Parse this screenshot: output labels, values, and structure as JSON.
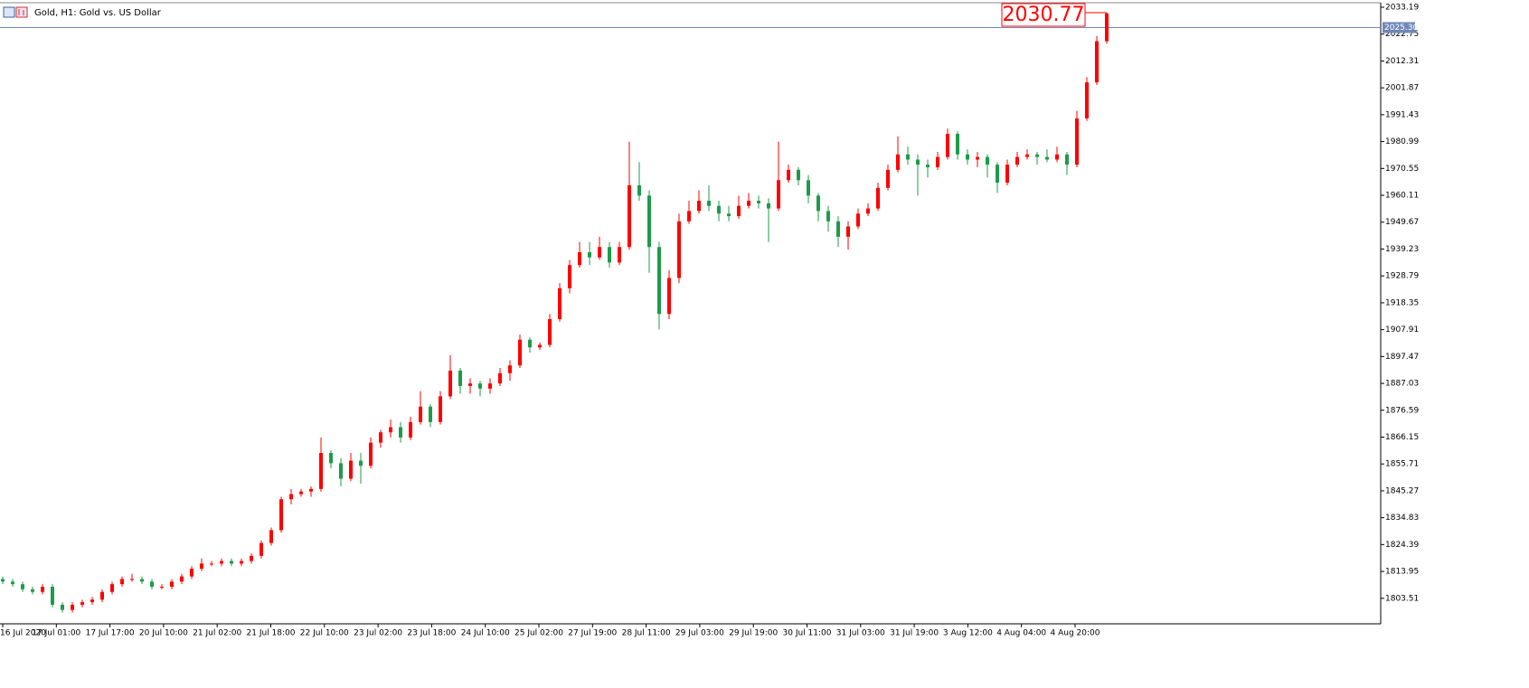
{
  "chart_data": {
    "type": "candlestick",
    "title": "Gold, H1:  Gold vs. US Dollar",
    "up_color": "#ff0000",
    "down_color": "#1e9b4a",
    "ylim": [
      1793.6,
      2035.3
    ],
    "yticks": [
      2033.19,
      2022.75,
      2012.31,
      2001.87,
      1991.43,
      1980.99,
      1970.55,
      1960.11,
      1949.67,
      1939.23,
      1928.79,
      1918.35,
      1907.91,
      1897.47,
      1887.03,
      1876.59,
      1866.15,
      1855.71,
      1845.27,
      1834.83,
      1824.39,
      1813.95,
      1803.51
    ],
    "categories": [
      "16 Jul 2020",
      "17 Jul 01:00",
      "17 Jul 17:00",
      "20 Jul 10:00",
      "21 Jul 02:00",
      "21 Jul 18:00",
      "22 Jul 10:00",
      "23 Jul 02:00",
      "23 Jul 18:00",
      "24 Jul 10:00",
      "25 Jul 02:00",
      "27 Jul 19:00",
      "28 Jul 11:00",
      "29 Jul 03:00",
      "29 Jul 19:00",
      "30 Jul 11:00",
      "31 Jul 03:00",
      "31 Jul 19:00",
      "3 Aug 12:00",
      "4 Aug 04:00",
      "4 Aug 20:00"
    ],
    "current_price": {
      "value": 2025.3,
      "label": "2025.30"
    },
    "last_price": 2030.77,
    "candles": [
      [
        1811,
        1812,
        1809,
        1810
      ],
      [
        1810,
        1811,
        1808,
        1809
      ],
      [
        1809,
        1810,
        1806,
        1807
      ],
      [
        1807,
        1808,
        1805,
        1806
      ],
      [
        1806,
        1809,
        1805,
        1808
      ],
      [
        1808,
        1809,
        1800,
        1801
      ],
      [
        1801,
        1802,
        1798,
        1799
      ],
      [
        1799,
        1802,
        1798,
        1801
      ],
      [
        1801,
        1803,
        1800,
        1802
      ],
      [
        1802,
        1804,
        1801,
        1803
      ],
      [
        1803,
        1807,
        1802,
        1806
      ],
      [
        1806,
        1810,
        1805,
        1809
      ],
      [
        1809,
        1812,
        1808,
        1811
      ],
      [
        1811,
        1813,
        1810,
        1811
      ],
      [
        1811,
        1812,
        1809,
        1810
      ],
      [
        1810,
        1811,
        1807,
        1808
      ],
      [
        1808,
        1809,
        1807,
        1808
      ],
      [
        1808,
        1811,
        1807,
        1810
      ],
      [
        1810,
        1813,
        1809,
        1812
      ],
      [
        1812,
        1816,
        1811,
        1815
      ],
      [
        1815,
        1819,
        1814,
        1817
      ],
      [
        1817,
        1818,
        1816,
        1817
      ],
      [
        1817,
        1819,
        1816,
        1818
      ],
      [
        1818,
        1819,
        1816,
        1817
      ],
      [
        1817,
        1819,
        1816,
        1818
      ],
      [
        1818,
        1821,
        1817,
        1820
      ],
      [
        1820,
        1826,
        1819,
        1825
      ],
      [
        1825,
        1831,
        1824,
        1830
      ],
      [
        1830,
        1843,
        1829,
        1842
      ],
      [
        1842,
        1846,
        1840,
        1844
      ],
      [
        1844,
        1846,
        1843,
        1845
      ],
      [
        1845,
        1847,
        1843,
        1846
      ],
      [
        1846,
        1866,
        1845,
        1860
      ],
      [
        1860,
        1861,
        1854,
        1856
      ],
      [
        1856,
        1858,
        1847,
        1850
      ],
      [
        1850,
        1860,
        1849,
        1857
      ],
      [
        1857,
        1860,
        1848,
        1855
      ],
      [
        1855,
        1866,
        1854,
        1864
      ],
      [
        1864,
        1869,
        1862,
        1868
      ],
      [
        1868,
        1873,
        1866,
        1870
      ],
      [
        1870,
        1872,
        1864,
        1866
      ],
      [
        1866,
        1874,
        1865,
        1872
      ],
      [
        1872,
        1884,
        1871,
        1878
      ],
      [
        1878,
        1879,
        1870,
        1872
      ],
      [
        1872,
        1884,
        1871,
        1882
      ],
      [
        1882,
        1898,
        1881,
        1892
      ],
      [
        1892,
        1893,
        1883,
        1886
      ],
      [
        1886,
        1889,
        1883,
        1887
      ],
      [
        1887,
        1888,
        1882,
        1885
      ],
      [
        1885,
        1889,
        1883,
        1887
      ],
      [
        1887,
        1893,
        1886,
        1891
      ],
      [
        1891,
        1896,
        1888,
        1894
      ],
      [
        1894,
        1906,
        1893,
        1904
      ],
      [
        1904,
        1905,
        1899,
        1901
      ],
      [
        1901,
        1903,
        1900,
        1902
      ],
      [
        1902,
        1914,
        1901,
        1912
      ],
      [
        1912,
        1926,
        1911,
        1924
      ],
      [
        1924,
        1935,
        1922,
        1933
      ],
      [
        1933,
        1942,
        1932,
        1938
      ],
      [
        1938,
        1942,
        1933,
        1936
      ],
      [
        1936,
        1944,
        1935,
        1940
      ],
      [
        1940,
        1942,
        1932,
        1934
      ],
      [
        1934,
        1942,
        1933,
        1940
      ],
      [
        1940,
        1981,
        1939,
        1964
      ],
      [
        1964,
        1973,
        1958,
        1960
      ],
      [
        1960,
        1962,
        1930,
        1940
      ],
      [
        1940,
        1942,
        1908,
        1914
      ],
      [
        1914,
        1931,
        1912,
        1928
      ],
      [
        1928,
        1953,
        1926,
        1950
      ],
      [
        1950,
        1958,
        1949,
        1954
      ],
      [
        1954,
        1962,
        1953,
        1958
      ],
      [
        1958,
        1964,
        1954,
        1956
      ],
      [
        1956,
        1958,
        1950,
        1953
      ],
      [
        1953,
        1956,
        1950,
        1952
      ],
      [
        1952,
        1960,
        1951,
        1956
      ],
      [
        1956,
        1961,
        1955,
        1958
      ],
      [
        1958,
        1960,
        1955,
        1957
      ],
      [
        1957,
        1959,
        1942,
        1955
      ],
      [
        1955,
        1981,
        1954,
        1966
      ],
      [
        1966,
        1972,
        1965,
        1970
      ],
      [
        1970,
        1971,
        1964,
        1966
      ],
      [
        1966,
        1968,
        1957,
        1960
      ],
      [
        1960,
        1961,
        1950,
        1954
      ],
      [
        1954,
        1956,
        1946,
        1950
      ],
      [
        1950,
        1952,
        1940,
        1944
      ],
      [
        1944,
        1950,
        1939,
        1948
      ],
      [
        1948,
        1955,
        1947,
        1953
      ],
      [
        1953,
        1957,
        1952,
        1955
      ],
      [
        1955,
        1965,
        1954,
        1963
      ],
      [
        1963,
        1972,
        1962,
        1970
      ],
      [
        1970,
        1983,
        1969,
        1976
      ],
      [
        1976,
        1979,
        1972,
        1974
      ],
      [
        1974,
        1976,
        1960,
        1972
      ],
      [
        1972,
        1974,
        1967,
        1971
      ],
      [
        1971,
        1977,
        1970,
        1975
      ],
      [
        1975,
        1986,
        1974,
        1984
      ],
      [
        1984,
        1985,
        1974,
        1976
      ],
      [
        1976,
        1978,
        1972,
        1974
      ],
      [
        1974,
        1977,
        1971,
        1975
      ],
      [
        1975,
        1976,
        1967,
        1972
      ],
      [
        1972,
        1973,
        1961,
        1965
      ],
      [
        1965,
        1974,
        1964,
        1972
      ],
      [
        1972,
        1977,
        1971,
        1975
      ],
      [
        1975,
        1978,
        1974,
        1976
      ],
      [
        1976,
        1977,
        1972,
        1975
      ],
      [
        1975,
        1978,
        1973,
        1974
      ],
      [
        1974,
        1979,
        1973,
        1976
      ],
      [
        1976,
        1977,
        1968,
        1972
      ],
      [
        1972,
        1993,
        1971,
        1990
      ],
      [
        1990,
        2006,
        1989,
        2004
      ],
      [
        2004,
        2022,
        2003,
        2020
      ],
      [
        2020,
        2031,
        2019,
        2030.77
      ]
    ]
  }
}
